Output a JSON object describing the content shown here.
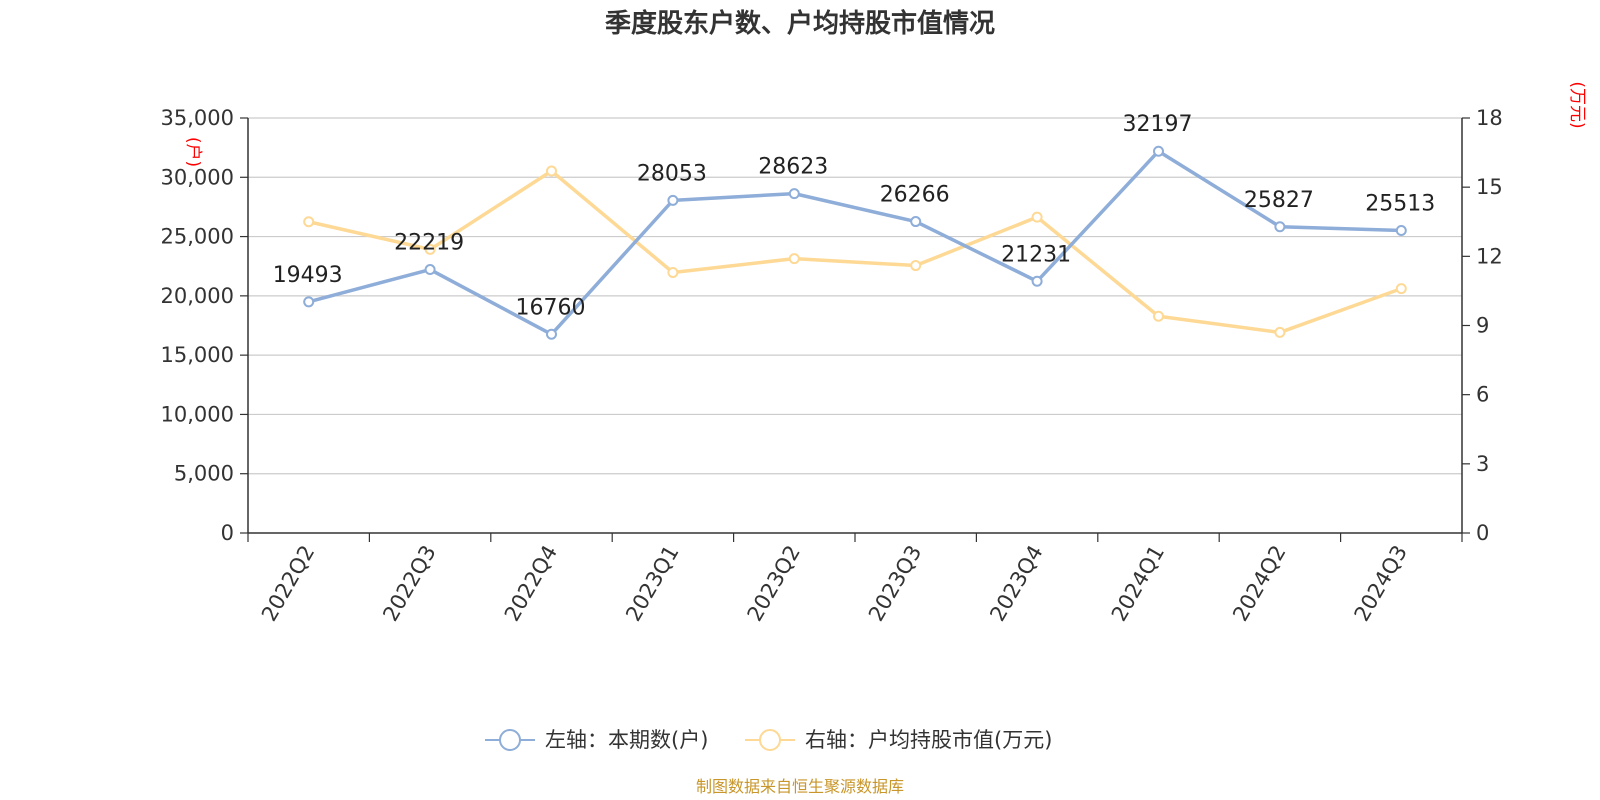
{
  "chart_data": {
    "type": "line",
    "title": "季度股东户数、户均持股市值情况",
    "categories": [
      "2022Q2",
      "2022Q3",
      "2022Q4",
      "2023Q1",
      "2023Q2",
      "2023Q3",
      "2023Q4",
      "2024Q1",
      "2024Q2",
      "2024Q3"
    ],
    "left_axis": {
      "unit": "(户)",
      "ylim": [
        0,
        35000
      ],
      "ticks": [
        "0",
        "5,000",
        "10,000",
        "15,000",
        "20,000",
        "25,000",
        "30,000",
        "35,000"
      ]
    },
    "right_axis": {
      "unit": "(万元)",
      "ylim": [
        0,
        18
      ],
      "ticks": [
        "0",
        "3",
        "6",
        "9",
        "12",
        "15",
        "18"
      ]
    },
    "series": [
      {
        "name": "左轴：本期数(户)",
        "axis": "left",
        "color": "#8eadd8",
        "values": [
          19493,
          22219,
          16760,
          28053,
          28623,
          26266,
          21231,
          32197,
          25827,
          25513
        ],
        "labels": [
          "19493",
          "22219",
          "16760",
          "28053",
          "28623",
          "26266",
          "21231",
          "32197",
          "25827",
          "25513"
        ]
      },
      {
        "name": "右轴：户均持股市值(万元)",
        "axis": "right",
        "color": "#fdd995",
        "values": [
          13.5,
          12.3,
          15.7,
          11.3,
          11.9,
          11.6,
          13.7,
          9.4,
          8.7,
          10.6
        ]
      }
    ],
    "grid": true,
    "legend_position": "bottom-center"
  },
  "footer": {
    "source": "制图数据来自恒生聚源数据库"
  }
}
